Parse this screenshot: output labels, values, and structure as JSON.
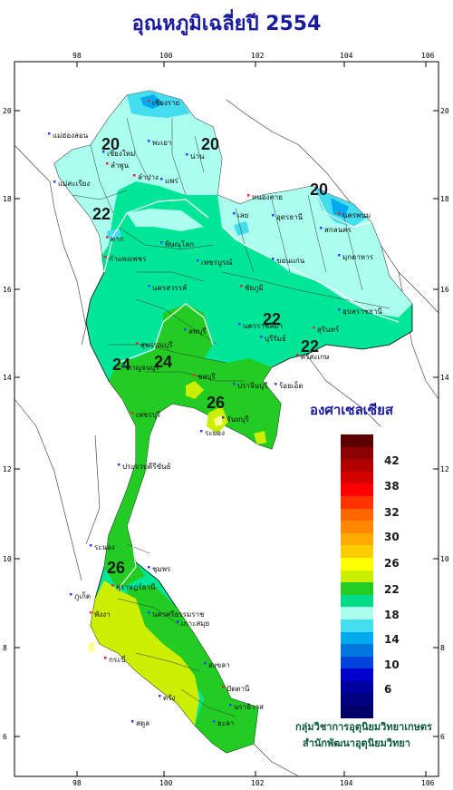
{
  "title": "อุณหภูมิเฉลี่ยปี 2554",
  "unit_label": "องศาเซลเซียส",
  "credit": {
    "line1": "กลุ่มวิชาการอุตุนิยมวิทยาเกษตร",
    "line2": "สำนักพัฒนาอุตุนิยมวิทยา"
  },
  "axes": {
    "x_ticks": [
      "98",
      "100",
      "102",
      "104",
      "106"
    ],
    "y_ticks": [
      "20",
      "18",
      "16",
      "14",
      "12",
      "10",
      "8",
      "6"
    ]
  },
  "legend": {
    "labels": [
      "42",
      "38",
      "32",
      "30",
      "26",
      "22",
      "18",
      "14",
      "10",
      "6"
    ],
    "colors": [
      "#5a0000",
      "#8b0000",
      "#b00000",
      "#d40000",
      "#ff0000",
      "#ff3300",
      "#ff6600",
      "#ff8800",
      "#ffaa00",
      "#ffcc00",
      "#ffff00",
      "#ccee00",
      "#22cc22",
      "#00dd88",
      "#aaffee",
      "#44ddee",
      "#00aaee",
      "#0077dd",
      "#0044dd",
      "#0000cc",
      "#0000a0",
      "#000080",
      "#000066"
    ]
  },
  "isotherms": [
    "20",
    "20",
    "20",
    "22",
    "22",
    "22",
    "24",
    "24",
    "26",
    "26"
  ],
  "provinces": [
    "เชียงราย",
    "แม่ฮ่องสอน",
    "เชียงใหม่",
    "ลำพูน",
    "น่าน",
    "พะเยา",
    "ลำปาง",
    "แพร่",
    "แม่สะเรียง",
    "หนองคาย",
    "เลย",
    "อุดรธานี",
    "นครพนม",
    "สกลนคร",
    "มุกดาหาร",
    "ตาก",
    "พิษณุโลก",
    "เพชรบูรณ์",
    "กำแพงเพชร",
    "ขอนแก่น",
    "นครสวรรค์",
    "ชัยภูมิ",
    "อุบลราชธานี",
    "นครราชสีมา",
    "สุรินทร์",
    "บุรีรัมย์",
    "ลพบุรี",
    "สุพรรณบุรี",
    "กาญจนบุรี",
    "ประจวบคีรีขันธ์",
    "ชลบุรี",
    "ระยอง",
    "จันทบุรี",
    "เพชรบุรี",
    "ระนอง",
    "ชุมพร",
    "สุราษฎร์ธานี",
    "นครศรีธรรมราช",
    "ภูเก็ต",
    "กระบี่",
    "ตรัง",
    "สงขลา",
    "ปัตตานี",
    "นราธิวาส",
    "ยะลา",
    "พังงา",
    "สตูล",
    "เกาะสมุย",
    "ศรีสะเกษ",
    "ร้อยเอ็ด",
    "ปราจีนบุรี"
  ]
}
